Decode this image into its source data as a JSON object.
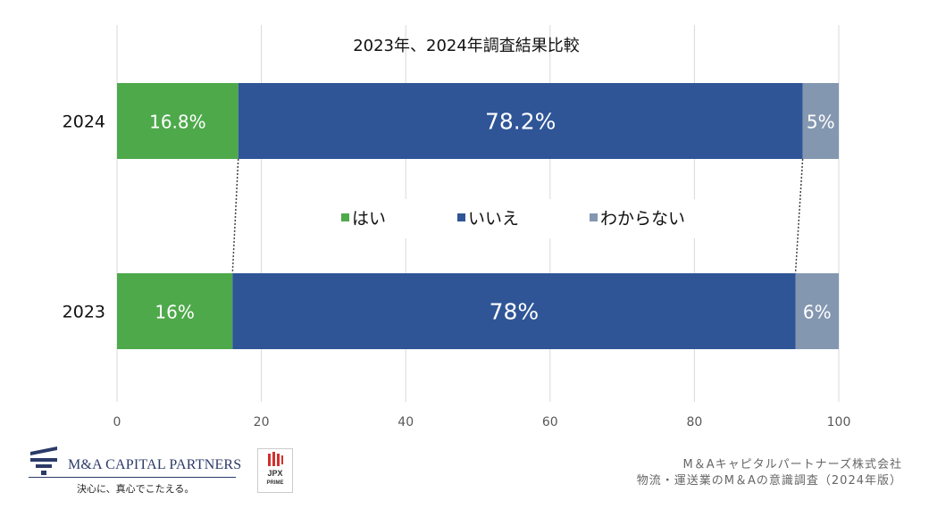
{
  "chart_data": {
    "type": "bar",
    "orientation": "horizontal",
    "stacked": true,
    "title": "2023年、2024年調査結果比較",
    "categories": [
      "2024",
      "2023"
    ],
    "series": [
      {
        "name": "はい",
        "values": [
          16.8,
          16
        ],
        "labels": [
          "16.8%",
          "16%"
        ],
        "color": "#4ea94b"
      },
      {
        "name": "いいえ",
        "values": [
          78.2,
          78
        ],
        "labels": [
          "78.2%",
          "78%"
        ],
        "color": "#2f5597"
      },
      {
        "name": "わからない",
        "values": [
          5,
          6
        ],
        "labels": [
          "5%",
          "6%"
        ],
        "color": "#8497b0"
      }
    ],
    "xlim": [
      0,
      100
    ],
    "xticks": [
      "0",
      "20",
      "40",
      "60",
      "80",
      "100"
    ],
    "grid": true,
    "legend": "center"
  },
  "footer": {
    "logo_name": "M&A CAPITAL PARTNERS",
    "logo_tagline": "決心に、真心でこたえる。",
    "jpx_label": "JPX",
    "jpx_sub": "PRIME",
    "source_line1": "M＆Aキャピタルパートナーズ株式会社",
    "source_line2": "物流・運送業のM＆Aの意識調査（2024年版）"
  }
}
